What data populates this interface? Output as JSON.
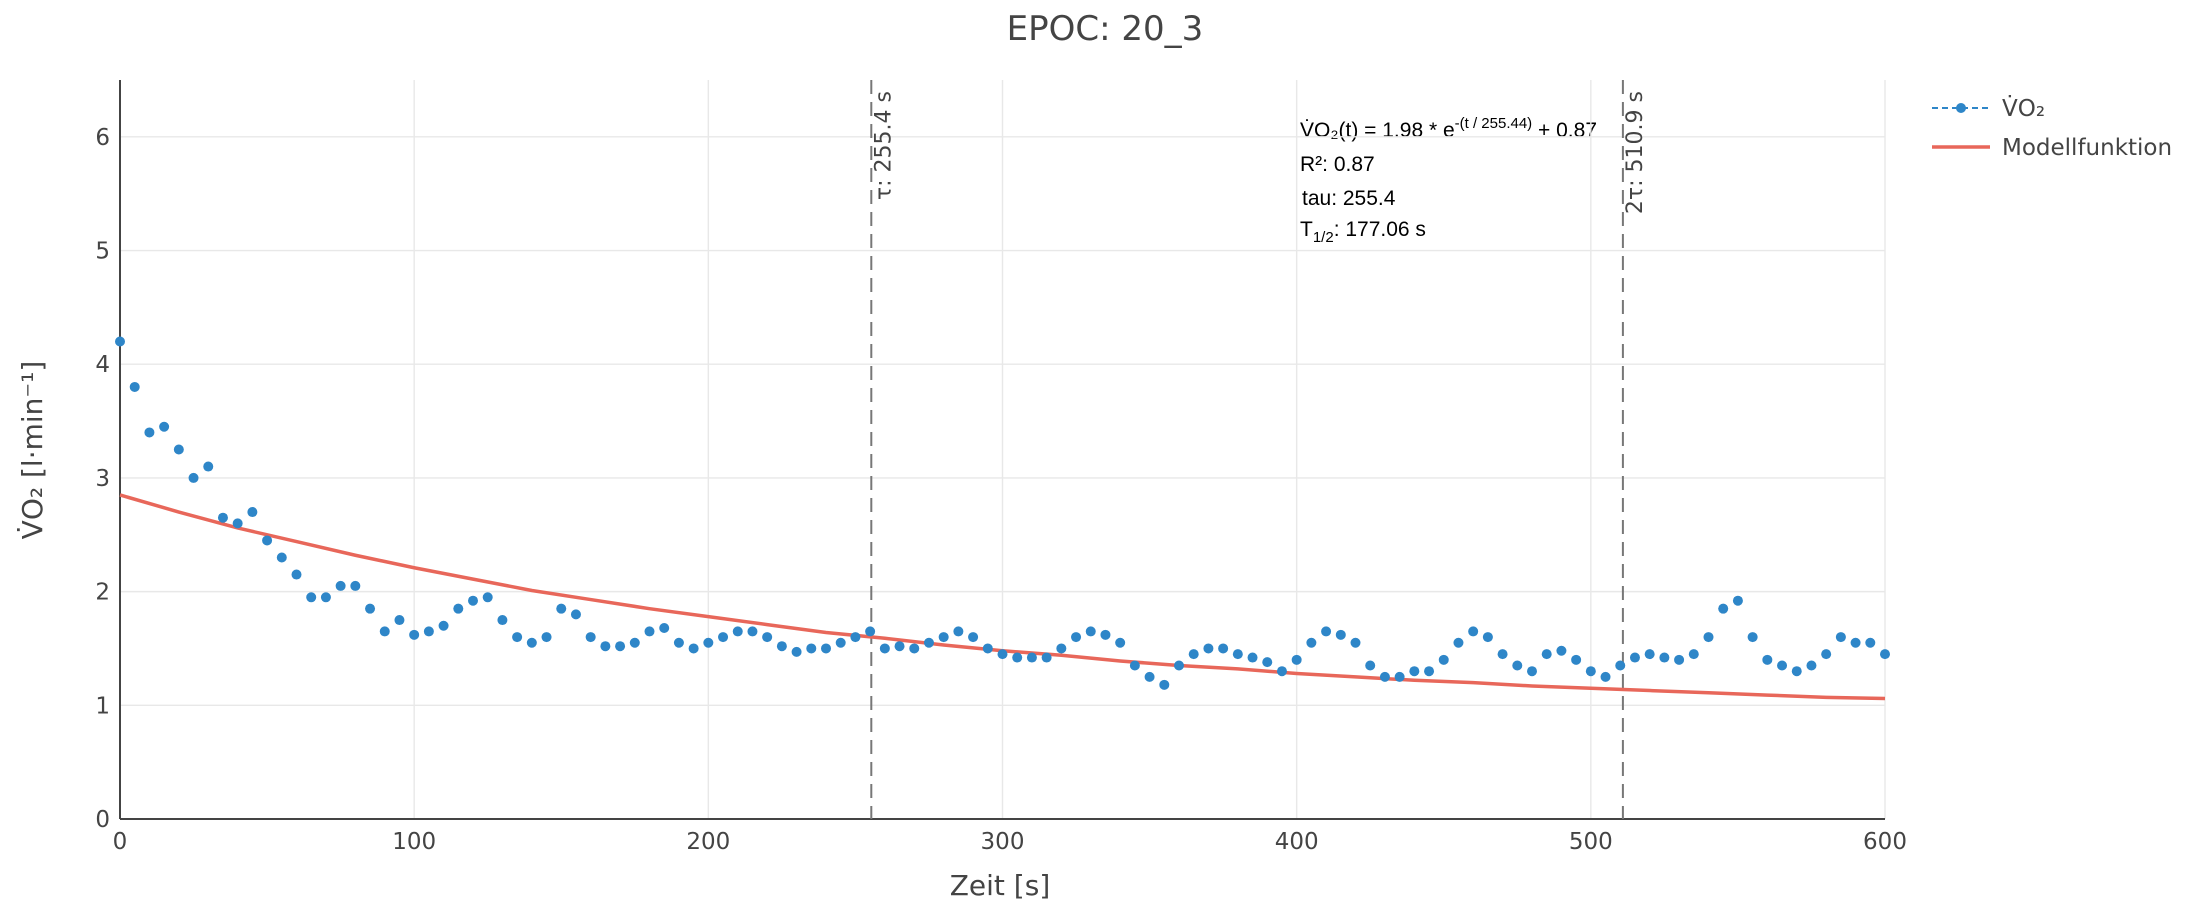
{
  "chart_data": {
    "type": "scatter",
    "title": "EPOC: 20_3",
    "x_label": "Zeit [s]",
    "y_label": "V̇O₂ [l·min⁻¹]",
    "xlim": [
      0,
      600
    ],
    "ylim": [
      0,
      6.5
    ],
    "xticks": [
      0,
      100,
      200,
      300,
      400,
      500,
      600
    ],
    "yticks": [
      0,
      1,
      2,
      3,
      4,
      5,
      6
    ],
    "grid": true,
    "legend": "top-right",
    "series": [
      {
        "name": "V̇O₂",
        "color": "#2e86c8",
        "style": "markers",
        "x": [
          0,
          5,
          10,
          15,
          20,
          25,
          30,
          35,
          40,
          45,
          50,
          55,
          60,
          65,
          70,
          75,
          80,
          85,
          90,
          95,
          100,
          105,
          110,
          115,
          120,
          125,
          130,
          135,
          140,
          145,
          150,
          155,
          160,
          165,
          170,
          175,
          180,
          185,
          190,
          195,
          200,
          205,
          210,
          215,
          220,
          225,
          230,
          235,
          240,
          245,
          250,
          255,
          260,
          265,
          270,
          275,
          280,
          285,
          290,
          295,
          300,
          305,
          310,
          315,
          320,
          325,
          330,
          335,
          340,
          345,
          350,
          355,
          360,
          365,
          370,
          375,
          380,
          385,
          390,
          395,
          400,
          405,
          410,
          415,
          420,
          425,
          430,
          435,
          440,
          445,
          450,
          455,
          460,
          465,
          470,
          475,
          480,
          485,
          490,
          495,
          500,
          505,
          510,
          515,
          520,
          525,
          530,
          535,
          540,
          545,
          550,
          555,
          560,
          565,
          570,
          575,
          580,
          585,
          590,
          595,
          600
        ],
        "values": [
          4.2,
          3.8,
          3.4,
          3.45,
          3.25,
          3.0,
          3.1,
          2.65,
          2.6,
          2.7,
          2.45,
          2.3,
          2.15,
          1.95,
          1.95,
          2.05,
          2.05,
          1.85,
          1.65,
          1.75,
          1.62,
          1.65,
          1.7,
          1.85,
          1.92,
          1.95,
          1.75,
          1.6,
          1.55,
          1.6,
          1.85,
          1.8,
          1.6,
          1.52,
          1.52,
          1.55,
          1.65,
          1.68,
          1.55,
          1.5,
          1.55,
          1.6,
          1.65,
          1.65,
          1.6,
          1.52,
          1.47,
          1.5,
          1.5,
          1.55,
          1.6,
          1.65,
          1.5,
          1.52,
          1.5,
          1.55,
          1.6,
          1.65,
          1.6,
          1.5,
          1.45,
          1.42,
          1.42,
          1.42,
          1.5,
          1.6,
          1.65,
          1.62,
          1.55,
          1.35,
          1.25,
          1.18,
          1.35,
          1.45,
          1.5,
          1.5,
          1.45,
          1.42,
          1.38,
          1.3,
          1.4,
          1.55,
          1.65,
          1.62,
          1.55,
          1.35,
          1.25,
          1.25,
          1.3,
          1.3,
          1.4,
          1.55,
          1.65,
          1.6,
          1.45,
          1.35,
          1.3,
          1.45,
          1.48,
          1.4,
          1.3,
          1.25,
          1.35,
          1.42,
          1.45,
          1.42,
          1.4,
          1.45,
          1.6,
          1.85,
          1.92,
          1.6,
          1.4,
          1.35,
          1.3,
          1.35,
          1.45,
          1.6,
          1.55,
          1.55,
          1.45
        ]
      },
      {
        "name": "Modellfunktion",
        "color": "#e8675a",
        "style": "line",
        "x": [
          0,
          20,
          40,
          60,
          80,
          100,
          120,
          140,
          160,
          180,
          200,
          220,
          240,
          260,
          280,
          300,
          320,
          340,
          360,
          380,
          400,
          420,
          440,
          460,
          480,
          500,
          520,
          540,
          560,
          580,
          600
        ],
        "values": [
          2.85,
          2.7,
          2.56,
          2.44,
          2.32,
          2.21,
          2.11,
          2.01,
          1.93,
          1.85,
          1.78,
          1.71,
          1.64,
          1.59,
          1.53,
          1.48,
          1.44,
          1.39,
          1.35,
          1.32,
          1.28,
          1.25,
          1.22,
          1.2,
          1.17,
          1.15,
          1.13,
          1.11,
          1.09,
          1.07,
          1.06
        ]
      }
    ],
    "vlines": [
      {
        "x": 255.4,
        "label": "τ: 255.4 s"
      },
      {
        "x": 510.9,
        "label": "2τ: 510.9 s"
      }
    ],
    "annotation": {
      "formula": [
        "V̇O₂(t) = 1.98 * e",
        "-(t / 255.44)",
        " + 0.87"
      ],
      "r2": "R²: 0.87",
      "tau": "tau: 255.4",
      "half_life": [
        "T",
        "1/2",
        ": 177.06 s"
      ]
    }
  }
}
